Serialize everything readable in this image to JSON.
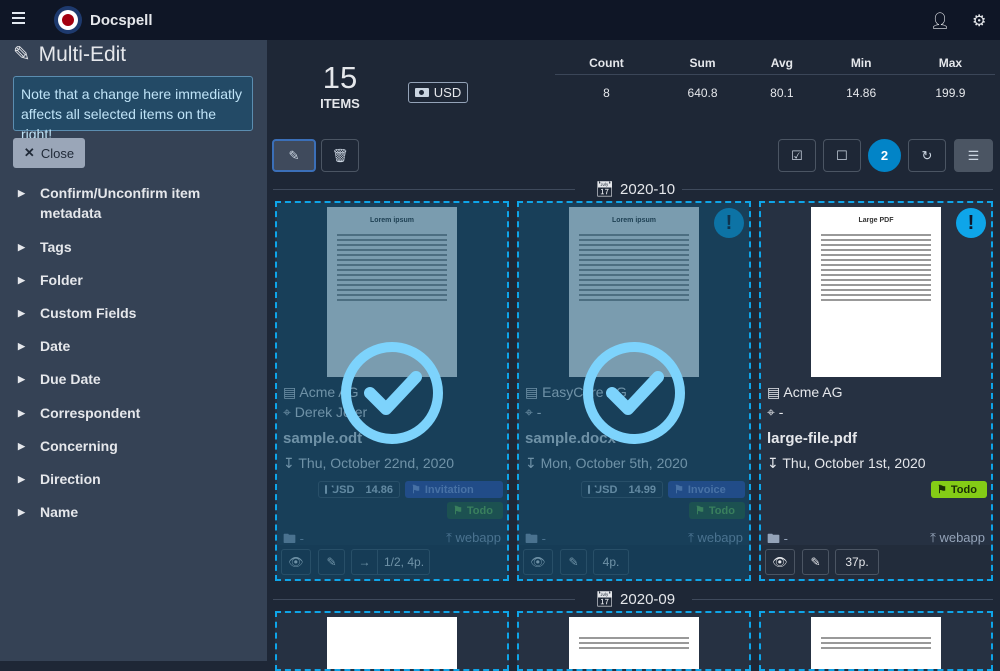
{
  "app": {
    "title": "Docspell"
  },
  "sidebar": {
    "title": "Multi-Edit",
    "note": "Note that a change here immediatly affects all selected items on the right!",
    "close_label": "Close",
    "sections": [
      "Confirm/Unconfirm item metadata",
      "Tags",
      "Folder",
      "Custom Fields",
      "Date",
      "Due Date",
      "Correspondent",
      "Concerning",
      "Direction",
      "Name"
    ]
  },
  "stats": {
    "count": "15",
    "count_label": "ITEMS",
    "currency": "USD",
    "headers": [
      "Count",
      "Sum",
      "Avg",
      "Min",
      "Max"
    ],
    "values": [
      "8",
      "640.8",
      "80.1",
      "14.86",
      "199.9"
    ]
  },
  "toolbar": {
    "selected_count": "2"
  },
  "groups": [
    {
      "month": "2020-10",
      "items": [
        {
          "thumb_title": "Lorem ipsum",
          "correspondent": "Acme AG",
          "concerning": "Derek Jeter",
          "name": "sample.odt",
          "date": "Thu, October 22nd, 2020",
          "amount_currency": "USD",
          "amount": "14.86",
          "tags": [
            "Invitation",
            "Todo"
          ],
          "folder": "-",
          "source": "webapp",
          "pages": "1/2, 4p.",
          "selected": true,
          "alert": false
        },
        {
          "thumb_title": "Lorem ipsum",
          "correspondent": "EasyCare AG",
          "concerning": "-",
          "name": "sample.docx",
          "date": "Mon, October 5th, 2020",
          "amount_currency": "USD",
          "amount": "14.99",
          "tags": [
            "Invoice",
            "Todo"
          ],
          "folder": "-",
          "source": "webapp",
          "pages": "4p.",
          "selected": true,
          "alert": true
        },
        {
          "thumb_title": "Large PDF",
          "correspondent": "Acme AG",
          "concerning": "-",
          "name": "large-file.pdf",
          "date": "Thu, October 1st, 2020",
          "tags": [
            "Todo"
          ],
          "folder": "-",
          "source": "webapp",
          "pages": "37p.",
          "selected": false,
          "alert": true
        }
      ]
    },
    {
      "month": "2020-09"
    }
  ],
  "colors": {
    "accent": "#0ea5e9",
    "tag_todo": "#84cc16",
    "tag_blue": "#3b4fa8"
  }
}
